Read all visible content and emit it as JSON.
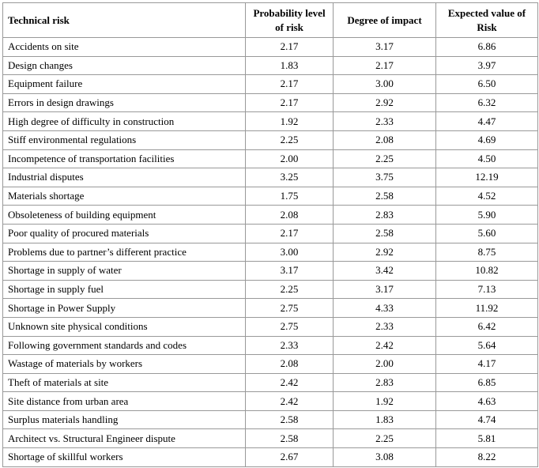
{
  "table": {
    "header": [
      "Technical risk",
      "Probability level of risk",
      "Degree of impact",
      "Expected value of Risk"
    ],
    "rows": [
      [
        "Accidents on site",
        "2.17",
        "3.17",
        "6.86"
      ],
      [
        "Design changes",
        "1.83",
        "2.17",
        "3.97"
      ],
      [
        "Equipment failure",
        "2.17",
        "3.00",
        "6.50"
      ],
      [
        "Errors in design drawings",
        "2.17",
        "2.92",
        "6.32"
      ],
      [
        "High degree of difficulty in construction",
        "1.92",
        "2.33",
        "4.47"
      ],
      [
        "Stiff environmental regulations",
        "2.25",
        "2.08",
        "4.69"
      ],
      [
        "Incompetence of transportation facilities",
        "2.00",
        "2.25",
        "4.50"
      ],
      [
        "Industrial disputes",
        "3.25",
        "3.75",
        "12.19"
      ],
      [
        "Materials shortage",
        "1.75",
        "2.58",
        "4.52"
      ],
      [
        "Obsoleteness of building equipment",
        "2.08",
        "2.83",
        "5.90"
      ],
      [
        "Poor quality of procured materials",
        "2.17",
        "2.58",
        "5.60"
      ],
      [
        "Problems due to partner’s different practice",
        "3.00",
        "2.92",
        "8.75"
      ],
      [
        "Shortage in supply of water",
        "3.17",
        "3.42",
        "10.82"
      ],
      [
        "Shortage in supply fuel",
        "2.25",
        "3.17",
        "7.13"
      ],
      [
        "Shortage in Power Supply",
        "2.75",
        "4.33",
        "11.92"
      ],
      [
        "Unknown site physical conditions",
        "2.75",
        "2.33",
        "6.42"
      ],
      [
        "Following government standards and codes",
        "2.33",
        "2.42",
        "5.64"
      ],
      [
        "Wastage of materials by workers",
        "2.08",
        "2.00",
        "4.17"
      ],
      [
        "Theft of materials at site",
        "2.42",
        "2.83",
        "6.85"
      ],
      [
        "Site distance from urban area",
        "2.42",
        "1.92",
        "4.63"
      ],
      [
        "Surplus materials handling",
        "2.58",
        "1.83",
        "4.74"
      ],
      [
        "Architect vs. Structural Engineer dispute",
        "2.58",
        "2.25",
        "5.81"
      ],
      [
        "Shortage of skillful workers",
        "2.67",
        "3.08",
        "8.22"
      ]
    ]
  }
}
